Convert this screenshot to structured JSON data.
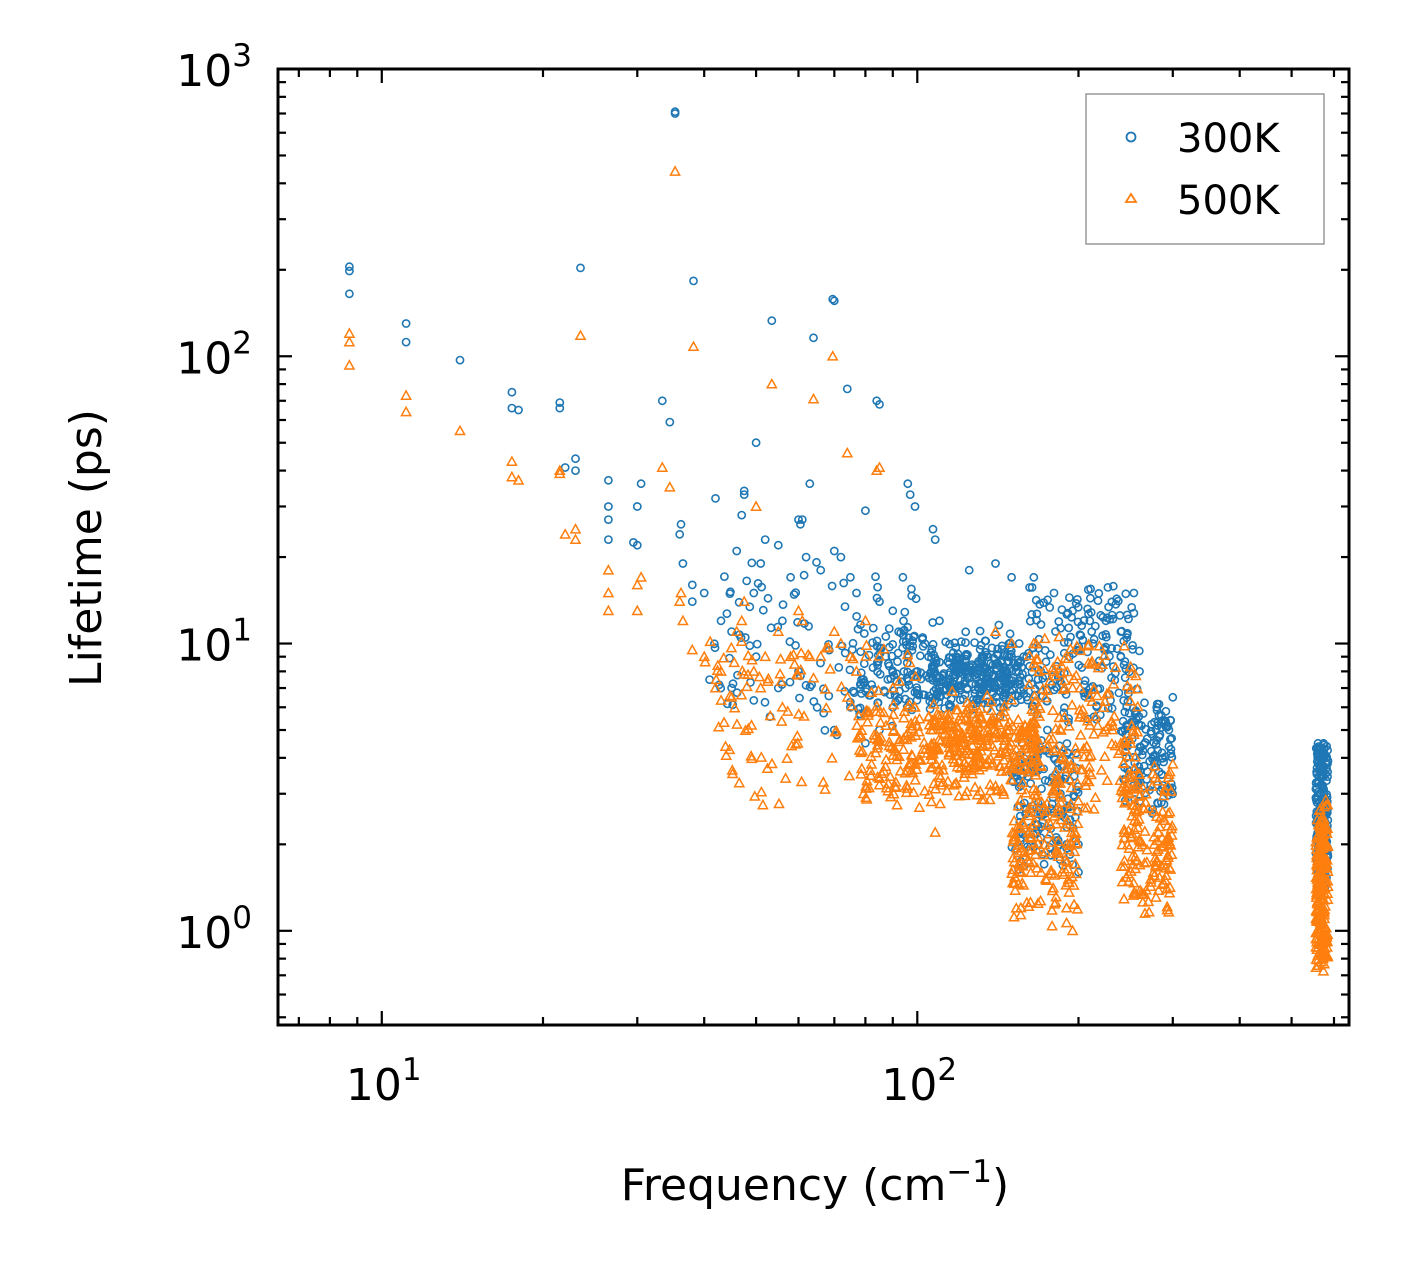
{
  "chart_data": {
    "type": "scatter",
    "title": "",
    "xlabel": "Frequency (cm",
    "xlabel_sup": "−1",
    "xlabel_end": ")",
    "ylabel": "Lifetime (ps)",
    "xscale": "log",
    "yscale": "log",
    "xlim": [
      6.4,
      640
    ],
    "ylim": [
      0.47,
      1000
    ],
    "x_ticks": [
      {
        "value": 10,
        "base": "10",
        "exp": "1"
      },
      {
        "value": 100,
        "base": "10",
        "exp": "2"
      }
    ],
    "y_ticks": [
      {
        "value": 1,
        "base": "10",
        "exp": "0"
      },
      {
        "value": 10,
        "base": "10",
        "exp": "1"
      },
      {
        "value": 100,
        "base": "10",
        "exp": "2"
      },
      {
        "value": 1000,
        "base": "10",
        "exp": "3"
      }
    ],
    "tick_direction": "in",
    "grid": false,
    "legend_position": "top-right",
    "series": [
      {
        "name": "300K",
        "marker": "circle-open",
        "color": "#1f77b4",
        "points": [
          [
            8.7,
            205
          ],
          [
            8.7,
            198
          ],
          [
            8.7,
            165
          ],
          [
            11.1,
            130
          ],
          [
            11.1,
            112
          ],
          [
            14,
            97
          ],
          [
            17.5,
            75
          ],
          [
            17.5,
            66
          ],
          [
            18,
            65
          ],
          [
            21.5,
            69
          ],
          [
            21.5,
            66
          ],
          [
            23.5,
            203
          ],
          [
            23,
            44
          ],
          [
            23,
            40
          ],
          [
            22,
            41
          ],
          [
            26.5,
            37
          ],
          [
            26.5,
            30
          ],
          [
            26.5,
            27
          ],
          [
            26.5,
            23
          ],
          [
            30.5,
            36
          ],
          [
            30,
            30
          ],
          [
            30,
            22
          ],
          [
            29.5,
            22.5
          ],
          [
            33.4,
            70
          ],
          [
            34.5,
            59
          ],
          [
            35.3,
            710
          ],
          [
            35.3,
            700
          ],
          [
            36.2,
            26
          ],
          [
            36,
            24
          ],
          [
            36.5,
            19
          ],
          [
            38.2,
            183
          ],
          [
            38,
            16
          ],
          [
            38,
            14
          ],
          [
            40,
            15
          ],
          [
            42,
            32
          ],
          [
            43,
            12
          ],
          [
            45,
            11
          ],
          [
            46,
            21
          ],
          [
            47.5,
            34
          ],
          [
            47.5,
            33
          ],
          [
            47,
            28
          ],
          [
            49.5,
            15
          ],
          [
            50,
            50
          ],
          [
            51,
            19
          ],
          [
            52,
            23
          ],
          [
            53.5,
            133
          ],
          [
            55,
            22
          ],
          [
            56,
            12
          ],
          [
            58,
            17
          ],
          [
            60,
            27
          ],
          [
            60.5,
            26
          ],
          [
            61,
            27
          ],
          [
            62,
            20
          ],
          [
            63,
            36
          ],
          [
            64,
            116
          ],
          [
            66,
            18
          ],
          [
            69.5,
            158
          ],
          [
            70,
            156
          ],
          [
            70,
            21
          ],
          [
            72,
            20
          ],
          [
            74,
            77
          ],
          [
            75,
            17
          ],
          [
            77,
            15
          ],
          [
            80,
            29
          ],
          [
            84,
            70
          ],
          [
            85,
            68
          ],
          [
            85,
            14
          ],
          [
            90,
            13
          ],
          [
            94,
            17
          ],
          [
            96,
            36
          ],
          [
            97,
            33
          ],
          [
            99,
            30
          ],
          [
            107,
            25
          ],
          [
            108,
            23
          ],
          [
            110,
            12
          ],
          [
            125,
            18
          ],
          [
            140,
            19
          ],
          [
            150,
            17
          ],
          [
            165,
            17
          ],
          [
            180,
            15
          ],
          [
            195,
            13
          ],
          [
            210,
            12
          ],
          [
            215,
            11.5
          ],
          [
            225,
            12
          ],
          [
            240,
            11
          ],
          [
            260,
            8
          ],
          [
            280,
            6
          ],
          [
            295,
            5
          ],
          [
            300,
            6.5
          ],
          [
            45,
            7
          ],
          [
            50,
            9
          ],
          [
            55,
            7
          ],
          [
            60,
            8
          ],
          [
            65,
            6
          ],
          [
            70,
            5
          ],
          [
            75,
            6
          ],
          [
            80,
            4.5
          ],
          [
            85,
            5
          ],
          [
            90,
            6
          ],
          [
            95,
            7
          ],
          [
            100,
            8
          ],
          [
            105,
            9
          ],
          [
            110,
            7
          ],
          [
            115,
            6
          ],
          [
            120,
            7
          ],
          [
            125,
            8
          ],
          [
            130,
            7
          ],
          [
            135,
            8
          ],
          [
            140,
            7
          ],
          [
            145,
            6
          ],
          [
            150,
            9
          ],
          [
            155,
            10
          ],
          [
            160,
            9
          ],
          [
            170,
            8
          ],
          [
            175,
            5
          ],
          [
            180,
            4
          ],
          [
            185,
            3
          ],
          [
            190,
            2
          ],
          [
            195,
            1.7
          ],
          [
            200,
            1.6
          ]
        ],
        "clusters": [
          {
            "x_range": [
              78,
              150
            ],
            "y_range": [
              5.5,
              12
            ],
            "count": 220
          },
          {
            "x_range": [
              105,
              160
            ],
            "y_range": [
              6,
              9.5
            ],
            "count": 200
          },
          {
            "x_range": [
              150,
              200
            ],
            "y_range": [
              1.6,
              5
            ],
            "count": 150
          },
          {
            "x_range": [
              160,
              260
            ],
            "y_range": [
              5,
              17
            ],
            "count": 180
          },
          {
            "x_range": [
              240,
              300
            ],
            "y_range": [
              2.5,
              6.5
            ],
            "count": 140
          },
          {
            "x_range": [
              555,
              585
            ],
            "y_range": [
              1.3,
              5
            ],
            "count": 220
          },
          {
            "x_range": [
              40,
              100
            ],
            "y_range": [
              4.5,
              20
            ],
            "count": 110
          }
        ]
      },
      {
        "name": "500K",
        "marker": "triangle-open",
        "color": "#ff7f0e",
        "points": [
          [
            8.7,
            120
          ],
          [
            8.7,
            112
          ],
          [
            8.7,
            93
          ],
          [
            11.1,
            73
          ],
          [
            11.1,
            64
          ],
          [
            14,
            55
          ],
          [
            17.5,
            43
          ],
          [
            17.5,
            38
          ],
          [
            18,
            37
          ],
          [
            21.5,
            39
          ],
          [
            21.5,
            40
          ],
          [
            23.5,
            118
          ],
          [
            23,
            25
          ],
          [
            23,
            23
          ],
          [
            22,
            24
          ],
          [
            26.5,
            18
          ],
          [
            26.5,
            15
          ],
          [
            26.5,
            13
          ],
          [
            30.5,
            17
          ],
          [
            30,
            16
          ],
          [
            30,
            13
          ],
          [
            33.4,
            41
          ],
          [
            34.5,
            35
          ],
          [
            35.3,
            440
          ],
          [
            36.2,
            15
          ],
          [
            36,
            14
          ],
          [
            36.5,
            12
          ],
          [
            38.2,
            108
          ],
          [
            38,
            9.5
          ],
          [
            40,
            9
          ],
          [
            42,
            7
          ],
          [
            43,
            8
          ],
          [
            45,
            6.5
          ],
          [
            46,
            11
          ],
          [
            47.5,
            14
          ],
          [
            47,
            12
          ],
          [
            49.5,
            8
          ],
          [
            50,
            30
          ],
          [
            51,
            7
          ],
          [
            52,
            9
          ],
          [
            53.5,
            80
          ],
          [
            55,
            11
          ],
          [
            56,
            6
          ],
          [
            58,
            9
          ],
          [
            60,
            13
          ],
          [
            61,
            12
          ],
          [
            63,
            9
          ],
          [
            64,
            71
          ],
          [
            66,
            9
          ],
          [
            69.5,
            100
          ],
          [
            70,
            11
          ],
          [
            72,
            10
          ],
          [
            74,
            46
          ],
          [
            75,
            9
          ],
          [
            77,
            8
          ],
          [
            80,
            12
          ],
          [
            84,
            40
          ],
          [
            85,
            41
          ],
          [
            90,
            7
          ],
          [
            96,
            6
          ],
          [
            99,
            6
          ],
          [
            107,
            5
          ],
          [
            108,
            2.2
          ],
          [
            125,
            6
          ],
          [
            140,
            11
          ],
          [
            150,
            10
          ],
          [
            165,
            10
          ],
          [
            180,
            8
          ],
          [
            195,
            7
          ],
          [
            210,
            6.5
          ],
          [
            225,
            5
          ],
          [
            240,
            4.5
          ],
          [
            260,
            3.5
          ],
          [
            280,
            2.5
          ],
          [
            295,
            3.5
          ],
          [
            300,
            3.8
          ],
          [
            190,
            1.2
          ],
          [
            195,
            1.0
          ]
        ],
        "clusters": [
          {
            "x_range": [
              78,
              150
            ],
            "y_range": [
              2.6,
              7
            ],
            "count": 220
          },
          {
            "x_range": [
              105,
              170
            ],
            "y_range": [
              3.5,
              6
            ],
            "count": 200
          },
          {
            "x_range": [
              150,
              200
            ],
            "y_range": [
              1.0,
              4
            ],
            "count": 160
          },
          {
            "x_range": [
              160,
              260
            ],
            "y_range": [
              2.5,
              11
            ],
            "count": 170
          },
          {
            "x_range": [
              240,
              300
            ],
            "y_range": [
              1.1,
              4
            ],
            "count": 160
          },
          {
            "x_range": [
              555,
              585
            ],
            "y_range": [
              0.68,
              3
            ],
            "count": 220
          },
          {
            "x_range": [
              40,
              100
            ],
            "y_range": [
              2.5,
              12
            ],
            "count": 110
          }
        ]
      }
    ]
  }
}
